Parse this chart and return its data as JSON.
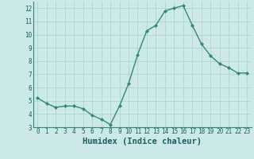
{
  "x": [
    0,
    1,
    2,
    3,
    4,
    5,
    6,
    7,
    8,
    9,
    10,
    11,
    12,
    13,
    14,
    15,
    16,
    17,
    18,
    19,
    20,
    21,
    22,
    23
  ],
  "y": [
    5.2,
    4.8,
    4.5,
    4.6,
    4.6,
    4.4,
    3.9,
    3.6,
    3.2,
    4.6,
    6.3,
    8.5,
    10.3,
    10.7,
    11.8,
    12.0,
    12.2,
    10.7,
    9.3,
    8.4,
    7.8,
    7.5,
    7.1,
    7.1
  ],
  "line_color": "#2e8b77",
  "marker": "D",
  "marker_size": 2.0,
  "bg_color": "#cce8e8",
  "grid_color": "#aacfcf",
  "xlabel": "Humidex (Indice chaleur)",
  "ylim": [
    3,
    12.5
  ],
  "xlim": [
    -0.5,
    23.5
  ],
  "yticks": [
    3,
    4,
    5,
    6,
    7,
    8,
    9,
    10,
    11,
    12
  ],
  "xticks": [
    0,
    1,
    2,
    3,
    4,
    5,
    6,
    7,
    8,
    9,
    10,
    11,
    12,
    13,
    14,
    15,
    16,
    17,
    18,
    19,
    20,
    21,
    22,
    23
  ],
  "tick_fontsize": 5.5,
  "xlabel_fontsize": 7.5,
  "line_width": 1.0
}
